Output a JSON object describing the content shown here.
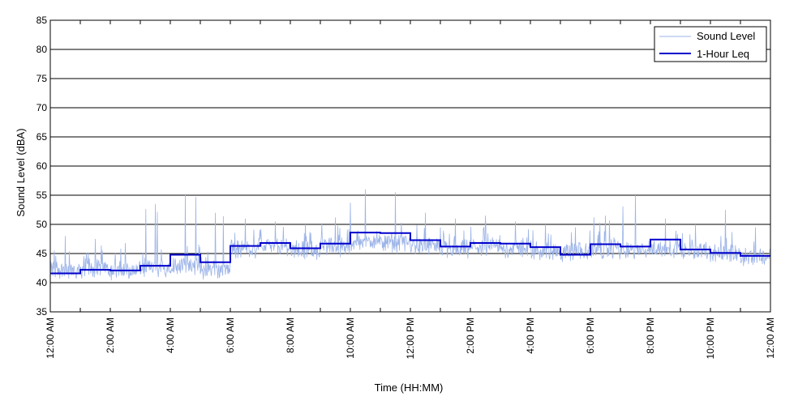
{
  "chart_data": {
    "type": "line",
    "title": "",
    "xlabel": "Time (HH:MM)",
    "ylabel": "Sound Level (dBA)",
    "ylim": [
      35,
      85
    ],
    "yticks": [
      35,
      40,
      45,
      50,
      55,
      60,
      65,
      70,
      75,
      80,
      85
    ],
    "xlim_hours": [
      0,
      24
    ],
    "xtick_labels": [
      {
        "hour": 0,
        "label": "12:00 AM"
      },
      {
        "hour": 2,
        "label": "2:00 AM"
      },
      {
        "hour": 4,
        "label": "4:00 AM"
      },
      {
        "hour": 6,
        "label": "6:00 AM"
      },
      {
        "hour": 8,
        "label": "8:00 AM"
      },
      {
        "hour": 10,
        "label": "10:00 AM"
      },
      {
        "hour": 12,
        "label": "12:00 PM"
      },
      {
        "hour": 14,
        "label": "2:00 PM"
      },
      {
        "hour": 16,
        "label": "4:00 PM"
      },
      {
        "hour": 18,
        "label": "6:00 PM"
      },
      {
        "hour": 20,
        "label": "8:00 PM"
      },
      {
        "hour": 22,
        "label": "10:00 PM"
      },
      {
        "hour": 24,
        "label": "12:00 AM"
      }
    ],
    "grid": "horizontal",
    "legend_position": "top-right",
    "series": [
      {
        "name": "Sound Level",
        "style": "thin-line",
        "color": "#9db4e8",
        "hourly_baseline": [
          41.6,
          41.8,
          41.5,
          41.9,
          42.5,
          41.5,
          45.2,
          45.6,
          45.0,
          45.5,
          46.6,
          46.2,
          45.6,
          45.1,
          45.5,
          45.3,
          44.9,
          44.6,
          45.1,
          44.9,
          45.3,
          44.7,
          44.4,
          43.9
        ],
        "hourly_peaks": [
          48,
          47.5,
          46.8,
          53.5,
          55.2,
          52.0,
          51.0,
          50.5,
          50.0,
          51.2,
          56.0,
          55.5,
          52.0,
          51.0,
          51.5,
          50.5,
          50.0,
          49.5,
          51.5,
          55.0,
          51.0,
          50.0,
          52.5,
          49.5
        ]
      },
      {
        "name": "1-Hour Leq",
        "style": "step",
        "color": "#0000cc",
        "x_hours": [
          0,
          1,
          2,
          3,
          4,
          5,
          6,
          7,
          8,
          9,
          10,
          11,
          12,
          13,
          14,
          15,
          16,
          17,
          18,
          19,
          20,
          21,
          22,
          23
        ],
        "values": [
          41.6,
          42.2,
          42.1,
          42.9,
          44.8,
          43.5,
          46.3,
          46.8,
          45.9,
          46.7,
          48.6,
          48.5,
          47.3,
          46.2,
          46.8,
          46.7,
          46.1,
          44.8,
          46.6,
          46.2,
          47.4,
          45.7,
          45.1,
          44.6
        ]
      }
    ]
  },
  "colors": {
    "sound_level": "#9db4e8",
    "leq": "#0000cc",
    "grid": "#000000"
  }
}
